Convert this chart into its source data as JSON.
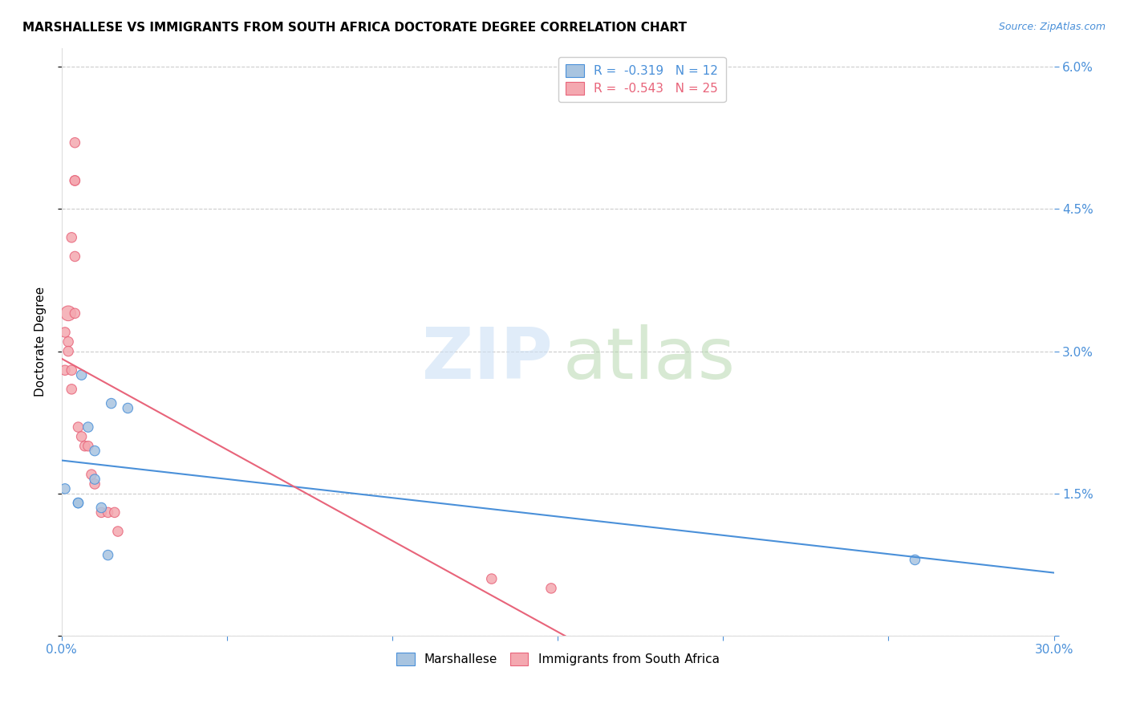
{
  "title": "MARSHALLESE VS IMMIGRANTS FROM SOUTH AFRICA DOCTORATE DEGREE CORRELATION CHART",
  "source": "Source: ZipAtlas.com",
  "ylabel_label": "Doctorate Degree",
  "xlim": [
    0,
    0.3
  ],
  "ylim": [
    0,
    0.062
  ],
  "blue_R": -0.319,
  "blue_N": 12,
  "pink_R": -0.543,
  "pink_N": 25,
  "blue_color": "#a8c4e0",
  "pink_color": "#f4a8b0",
  "blue_line_color": "#4a90d9",
  "pink_line_color": "#e8647a",
  "legend_label_blue": "Marshallese",
  "legend_label_pink": "Immigrants from South Africa",
  "blue_points": [
    [
      0.001,
      0.0155
    ],
    [
      0.005,
      0.014
    ],
    [
      0.005,
      0.014
    ],
    [
      0.006,
      0.0275
    ],
    [
      0.008,
      0.022
    ],
    [
      0.01,
      0.0195
    ],
    [
      0.01,
      0.0165
    ],
    [
      0.012,
      0.0135
    ],
    [
      0.014,
      0.0085
    ],
    [
      0.015,
      0.0245
    ],
    [
      0.02,
      0.024
    ],
    [
      0.258,
      0.008
    ]
  ],
  "pink_points": [
    [
      0.001,
      0.032
    ],
    [
      0.001,
      0.028
    ],
    [
      0.002,
      0.034
    ],
    [
      0.002,
      0.031
    ],
    [
      0.002,
      0.03
    ],
    [
      0.003,
      0.028
    ],
    [
      0.003,
      0.026
    ],
    [
      0.003,
      0.042
    ],
    [
      0.004,
      0.052
    ],
    [
      0.004,
      0.034
    ],
    [
      0.004,
      0.048
    ],
    [
      0.004,
      0.048
    ],
    [
      0.004,
      0.04
    ],
    [
      0.005,
      0.022
    ],
    [
      0.006,
      0.021
    ],
    [
      0.007,
      0.02
    ],
    [
      0.008,
      0.02
    ],
    [
      0.009,
      0.017
    ],
    [
      0.01,
      0.016
    ],
    [
      0.012,
      0.013
    ],
    [
      0.014,
      0.013
    ],
    [
      0.016,
      0.013
    ],
    [
      0.017,
      0.011
    ],
    [
      0.13,
      0.006
    ],
    [
      0.148,
      0.005
    ]
  ],
  "blue_point_sizes": [
    80,
    80,
    80,
    80,
    80,
    80,
    80,
    80,
    80,
    80,
    80,
    80
  ],
  "pink_point_sizes": [
    80,
    80,
    180,
    80,
    80,
    80,
    80,
    80,
    80,
    80,
    80,
    80,
    80,
    80,
    80,
    80,
    80,
    80,
    80,
    80,
    80,
    80,
    80,
    80,
    80
  ],
  "ytick_positions": [
    0.0,
    0.015,
    0.03,
    0.045,
    0.06
  ],
  "yticklabels_right": [
    "",
    "1.5%",
    "3.0%",
    "4.5%",
    "6.0%"
  ],
  "xtick_positions": [
    0.0,
    0.05,
    0.1,
    0.15,
    0.2,
    0.25,
    0.3
  ],
  "xticklabels": [
    "0.0%",
    "",
    "",
    "",
    "",
    "",
    "30.0%"
  ]
}
